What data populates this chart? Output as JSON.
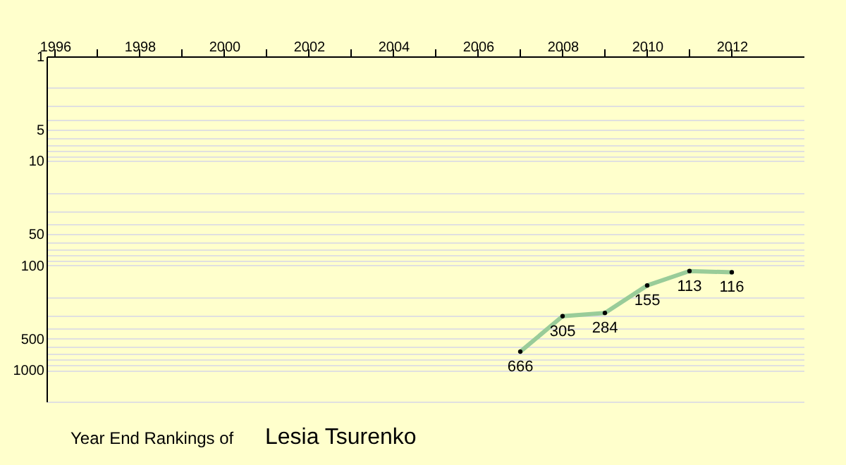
{
  "chart_data": {
    "type": "line",
    "title": "Year End Rankings of",
    "subtitle": "Lesia Tsurenko",
    "x": [
      2007,
      2008,
      2009,
      2010,
      2011,
      2012
    ],
    "series": [
      {
        "color": "#99cc99",
        "values": [
          666,
          305,
          284,
          155,
          113,
          116
        ]
      }
    ],
    "data_labels": true,
    "marker": "circle",
    "grid": "y",
    "log": "y",
    "xlim": [
      1995.8,
      2013.7
    ],
    "xticks": [
      1996,
      {
        "value": 1997,
        "label": null
      },
      1998,
      {
        "value": 1999,
        "label": null
      },
      2000,
      {
        "value": 2001,
        "label": null
      },
      2002,
      {
        "value": 2003,
        "label": null
      },
      2004,
      {
        "value": 2005,
        "label": null
      },
      2006,
      {
        "value": 2007,
        "label": null
      },
      2008,
      {
        "value": 2009,
        "label": null
      },
      2010,
      {
        "value": 2011,
        "label": null
      },
      2012
    ],
    "ylim": [
      2000,
      1
    ],
    "yticks": [
      1,
      {
        "value": 2,
        "label": null
      },
      {
        "value": 3,
        "label": null
      },
      {
        "value": 4,
        "label": null
      },
      5,
      {
        "value": 6,
        "label": null
      },
      {
        "value": 7,
        "label": null
      },
      {
        "value": 8,
        "label": null
      },
      {
        "value": 9,
        "label": null
      },
      10,
      {
        "value": 20,
        "label": null
      },
      {
        "value": 30,
        "label": null
      },
      {
        "value": 40,
        "label": null
      },
      50,
      {
        "value": 60,
        "label": null
      },
      {
        "value": 70,
        "label": null
      },
      {
        "value": 80,
        "label": null
      },
      {
        "value": 90,
        "label": null
      },
      100,
      {
        "value": 200,
        "label": null
      },
      {
        "value": 300,
        "label": null
      },
      {
        "value": 400,
        "label": null
      },
      500,
      {
        "value": 600,
        "label": null
      },
      {
        "value": 700,
        "label": null
      },
      {
        "value": 800,
        "label": null
      },
      {
        "value": 900,
        "label": null
      },
      1000,
      {
        "value": 2000,
        "label": null
      }
    ]
  }
}
